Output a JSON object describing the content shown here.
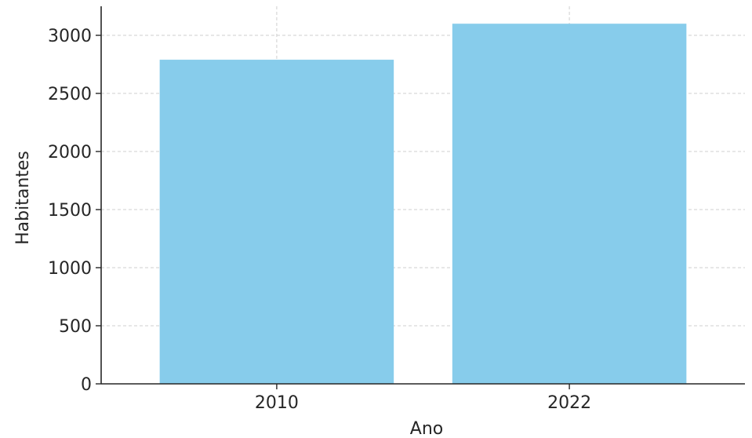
{
  "chart_data": {
    "type": "bar",
    "title": "",
    "xlabel": "Ano",
    "ylabel": "Habitantes",
    "categories": [
      "2010",
      "2022"
    ],
    "values": [
      2790,
      3100
    ],
    "ylim": [
      0,
      3250
    ],
    "yticks": [
      0,
      500,
      1000,
      1500,
      2000,
      2500,
      3000
    ],
    "grid": true,
    "bar_color": "#87CCEB"
  }
}
